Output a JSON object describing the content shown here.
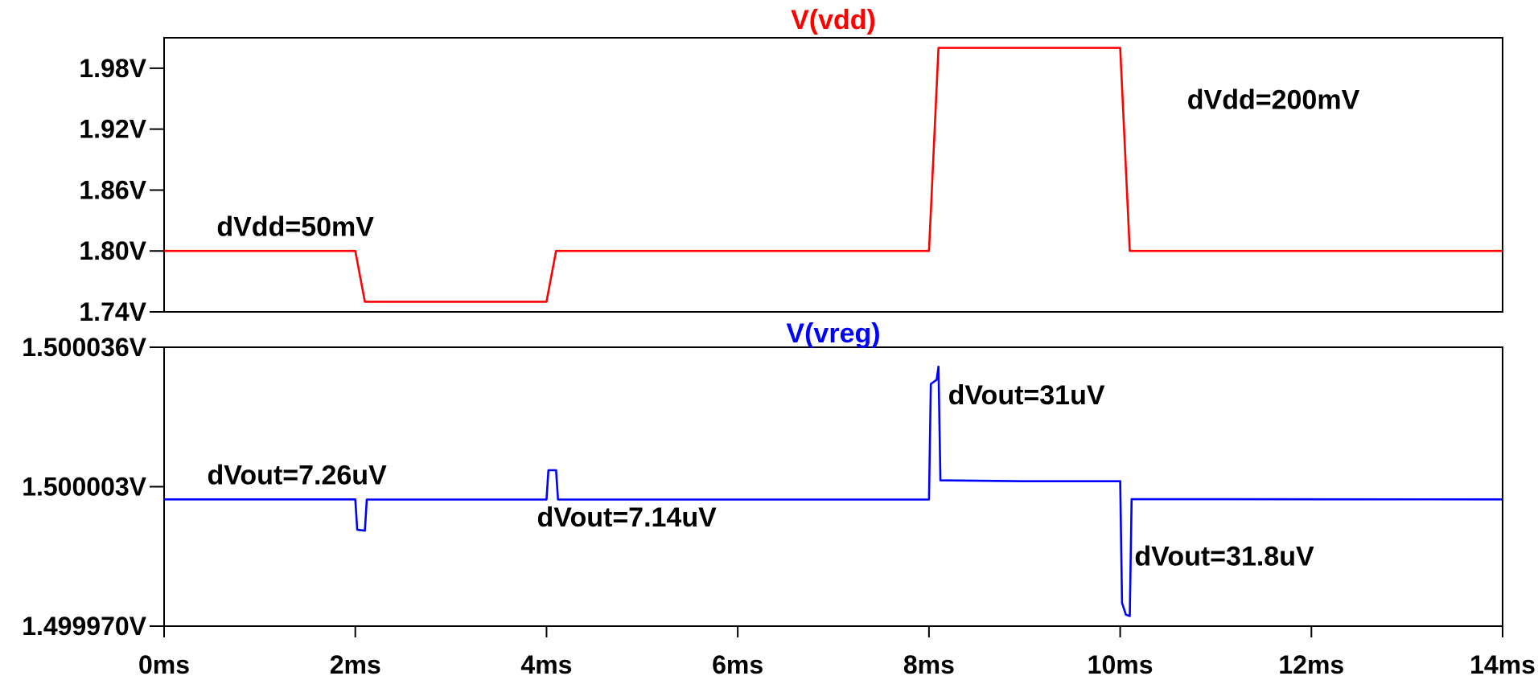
{
  "chart_data": [
    {
      "type": "line",
      "title": "V(vdd)",
      "title_color": "#ff0000",
      "line_color": "#ff0000",
      "xlim": [
        0,
        14
      ],
      "ylim": [
        1.74,
        2.01
      ],
      "y_ticks": [
        {
          "value": 1.74,
          "label": "1.74V"
        },
        {
          "value": 1.8,
          "label": "1.80V"
        },
        {
          "value": 1.86,
          "label": "1.86V"
        },
        {
          "value": 1.92,
          "label": "1.92V"
        },
        {
          "value": 1.98,
          "label": "1.98V"
        }
      ],
      "grid": false,
      "series": [
        {
          "x": [
            0,
            2.0,
            2.1,
            4.0,
            4.1,
            8.0,
            8.1,
            10.0,
            10.1,
            14.0
          ],
          "y": [
            1.8,
            1.8,
            1.75,
            1.75,
            1.8,
            1.8,
            2.0,
            2.0,
            1.8,
            1.8
          ]
        }
      ],
      "annotations": [
        {
          "text": "dVdd=50mV",
          "x": 0.55,
          "y": 1.815
        },
        {
          "text": "dVdd=200mV",
          "x": 10.7,
          "y": 1.94
        }
      ]
    },
    {
      "type": "line",
      "title": "V(vreg)",
      "title_color": "#0000ff",
      "line_color": "#0000ff",
      "xlim": [
        0,
        14
      ],
      "ylim": [
        1.49997,
        1.500036
      ],
      "y_ticks": [
        {
          "value": 1.49997,
          "label": "1.499970V"
        },
        {
          "value": 1.500003,
          "label": "1.500003V"
        },
        {
          "value": 1.500036,
          "label": "1.500036V"
        }
      ],
      "x_ticks": [
        {
          "value": 0,
          "label": "0ms"
        },
        {
          "value": 2,
          "label": "2ms"
        },
        {
          "value": 4,
          "label": "4ms"
        },
        {
          "value": 6,
          "label": "6ms"
        },
        {
          "value": 8,
          "label": "8ms"
        },
        {
          "value": 10,
          "label": "10ms"
        },
        {
          "value": 12,
          "label": "12ms"
        },
        {
          "value": 14,
          "label": "14ms"
        }
      ],
      "grid": false,
      "series": [
        {
          "x": [
            0,
            2.0,
            2.02,
            2.1,
            2.12,
            4.0,
            4.02,
            4.1,
            4.12,
            8.0,
            8.02,
            8.08,
            8.1,
            8.12,
            9.0,
            10.0,
            10.02,
            10.06,
            10.1,
            10.12,
            14.0
          ],
          "y": [
            1.5,
            1.5,
            1.4999928,
            1.4999926,
            1.49999995,
            1.49999995,
            1.5000069,
            1.5000069,
            1.49999995,
            1.49999995,
            1.5000273,
            1.5000283,
            1.5000314,
            1.5000045,
            1.5000043,
            1.5000043,
            1.4999755,
            1.4999727,
            1.4999724,
            1.50000005,
            1.5
          ]
        }
      ],
      "annotations": [
        {
          "text": "dVout=7.26uV",
          "x": 0.45,
          "y": 1.5000036
        },
        {
          "text": "dVout=7.14uV",
          "x": 3.9,
          "y": 1.4999936
        },
        {
          "text": "dVout=31uV",
          "x": 8.2,
          "y": 1.5000225
        },
        {
          "text": "dVout=31.8uV",
          "x": 10.15,
          "y": 1.4999844
        }
      ]
    }
  ]
}
